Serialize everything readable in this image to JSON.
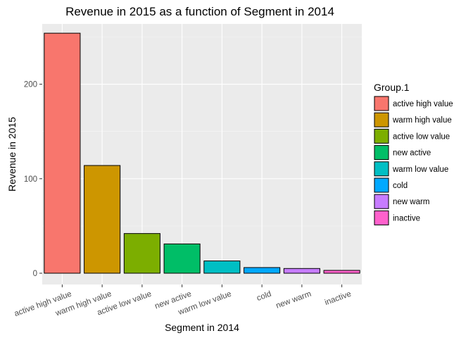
{
  "chart_data": {
    "type": "bar",
    "title": "Revenue in 2015 as a function of Segment in 2014",
    "xlabel": "Segment in 2014",
    "ylabel": "Revenue in 2015",
    "categories": [
      "active high value",
      "warm high value",
      "active low value",
      "new active",
      "warm low value",
      "cold",
      "new warm",
      "inactive"
    ],
    "values": [
      254,
      114,
      42,
      31,
      13,
      6,
      5,
      3
    ],
    "colors": [
      "#F8766D",
      "#CD9600",
      "#7CAE00",
      "#00BE67",
      "#00BFC4",
      "#00A9FF",
      "#C77CFF",
      "#FF61CC"
    ],
    "ylim": [
      0,
      262
    ],
    "yticks": [
      0,
      100,
      200
    ],
    "grid": true,
    "background": "#EBEBEB",
    "legend": {
      "title": "Group.1",
      "position": "right",
      "entries": [
        "active high value",
        "warm high value",
        "active low value",
        "new active",
        "warm low value",
        "cold",
        "new warm",
        "inactive"
      ]
    }
  }
}
